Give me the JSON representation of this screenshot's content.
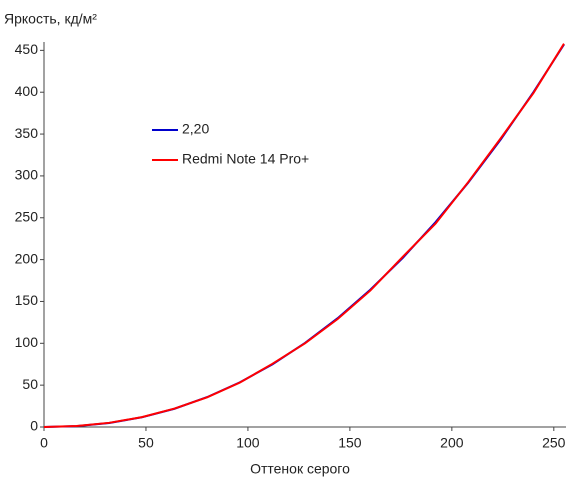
{
  "chart_data": {
    "type": "line",
    "y_label": "Яркость, кд/м²",
    "x_label": "Оттенок серого",
    "x": [
      0,
      16,
      32,
      48,
      64,
      80,
      96,
      112,
      128,
      144,
      160,
      176,
      192,
      208,
      224,
      240,
      255
    ],
    "series": [
      {
        "name": "2,20",
        "color": "#0000cc",
        "values": [
          0,
          1.0,
          4.8,
          11.6,
          21.8,
          35.7,
          53.3,
          74.8,
          100.4,
          130.0,
          164.0,
          202.2,
          244.8,
          291.9,
          343.6,
          400.0,
          457
        ]
      },
      {
        "name": "Redmi Note 14 Pro+",
        "color": "#ff0000",
        "values": [
          0,
          1.2,
          5.0,
          11.8,
          22.0,
          35.5,
          53.0,
          75.5,
          100.0,
          129.0,
          163.0,
          203.5,
          243.0,
          292.5,
          345.0,
          399.0,
          458
        ]
      }
    ],
    "xlim": [
      0,
      255
    ],
    "xticks": [
      0,
      50,
      100,
      150,
      200,
      250
    ],
    "ylim": [
      0,
      460
    ],
    "yticks": [
      0,
      50,
      100,
      150,
      200,
      250,
      300,
      350,
      400,
      450
    ],
    "grid": false,
    "legend": "upper left"
  }
}
